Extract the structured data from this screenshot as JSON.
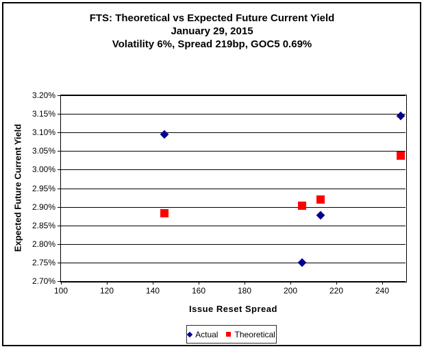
{
  "title": {
    "line1": "FTS: Theoretical vs Expected Future Current Yield",
    "line2": "January 29, 2015",
    "line3": "Volatility 6%, Spread 219bp, GOC5 0.69%"
  },
  "colors": {
    "actual": "#000090",
    "theoretical": "#ff0000",
    "axis": "#000000",
    "background": "#ffffff"
  },
  "chart_data": {
    "type": "scatter",
    "title": "FTS: Theoretical vs Expected Future Current Yield",
    "subtitle": "January 29, 2015",
    "subtitle2": "Volatility 6%, Spread 219bp, GOC5 0.69%",
    "xlabel": "Issue Reset Spread",
    "ylabel": "Expected Future Current Yield",
    "xlim": [
      100,
      250
    ],
    "ylim_percent": [
      2.7,
      3.2
    ],
    "grid": "horizontal-major",
    "legend_position": "bottom-center",
    "x_ticks": [
      100,
      120,
      140,
      160,
      180,
      200,
      220,
      240
    ],
    "y_ticks": [
      {
        "value": 3.2,
        "label": "3.20%"
      },
      {
        "value": 3.15,
        "label": "3.15%"
      },
      {
        "value": 3.1,
        "label": "3.10%"
      },
      {
        "value": 3.05,
        "label": "3.05%"
      },
      {
        "value": 3.0,
        "label": "3.00%"
      },
      {
        "value": 2.95,
        "label": "2.95%"
      },
      {
        "value": 2.9,
        "label": "2.90%"
      },
      {
        "value": 2.85,
        "label": "2.85%"
      },
      {
        "value": 2.8,
        "label": "2.80%"
      },
      {
        "value": 2.75,
        "label": "2.75%"
      },
      {
        "value": 2.7,
        "label": "2.70%"
      }
    ],
    "series": [
      {
        "name": "Actual",
        "marker": "diamond",
        "color": "#000090",
        "points": [
          [
            145,
            3.095
          ],
          [
            205,
            2.75
          ],
          [
            213,
            2.877
          ],
          [
            248,
            3.145
          ]
        ]
      },
      {
        "name": "Theoretical",
        "marker": "square",
        "color": "#ff0000",
        "points": [
          [
            145,
            2.882
          ],
          [
            205,
            2.903
          ],
          [
            213,
            2.92
          ],
          [
            248,
            3.038
          ]
        ]
      }
    ]
  }
}
